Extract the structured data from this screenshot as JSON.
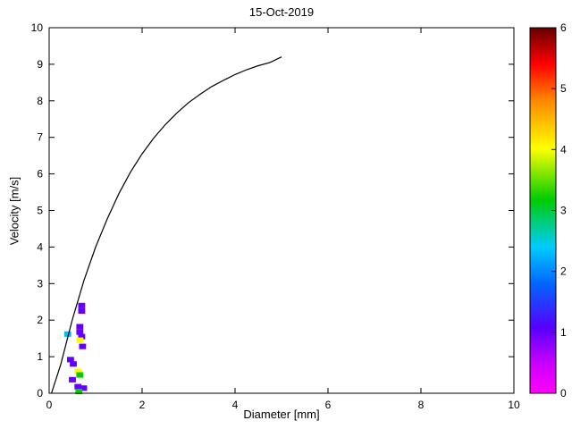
{
  "chart_data": {
    "type": "heatmap",
    "title": "15-Oct-2019",
    "xlabel": "Diameter [mm]",
    "ylabel": "Velocity [m/s]",
    "xlim": [
      0,
      10
    ],
    "ylim": [
      0,
      10
    ],
    "xticks": [
      0,
      2,
      4,
      6,
      8,
      10
    ],
    "yticks": [
      0,
      1,
      2,
      3,
      4,
      5,
      6,
      7,
      8,
      9,
      10
    ],
    "grid": false,
    "legend": "none",
    "background": "#ffffff",
    "axis_color": "#000000",
    "curve": {
      "name": "terminal-velocity-curve",
      "color": "#000000",
      "x": [
        0.05,
        0.25,
        0.5,
        0.75,
        1.0,
        1.25,
        1.5,
        1.75,
        2.0,
        2.25,
        2.5,
        2.75,
        3.0,
        3.25,
        3.5,
        3.75,
        4.0,
        4.25,
        4.5,
        4.75,
        5.0
      ],
      "y": [
        0,
        0.79,
        2.02,
        3.09,
        4.0,
        4.77,
        5.46,
        6.05,
        6.55,
        6.98,
        7.35,
        7.67,
        7.95,
        8.18,
        8.39,
        8.56,
        8.72,
        8.85,
        8.96,
        9.05,
        9.2
      ]
    },
    "cell_size": {
      "d": 0.15,
      "v": 0.15
    },
    "cells": [
      {
        "d": 0.7,
        "v": 2.4,
        "value": 1
      },
      {
        "d": 0.7,
        "v": 2.25,
        "value": 1
      },
      {
        "d": 0.66,
        "v": 1.82,
        "value": 1
      },
      {
        "d": 0.66,
        "v": 1.67,
        "value": 1
      },
      {
        "d": 0.4,
        "v": 1.62,
        "value": 2.3
      },
      {
        "d": 0.7,
        "v": 1.55,
        "value": 1
      },
      {
        "d": 0.66,
        "v": 1.45,
        "value": 4
      },
      {
        "d": 0.72,
        "v": 1.28,
        "value": 1
      },
      {
        "d": 0.46,
        "v": 0.92,
        "value": 1
      },
      {
        "d": 0.52,
        "v": 0.8,
        "value": 1
      },
      {
        "d": 0.62,
        "v": 0.6,
        "value": 4
      },
      {
        "d": 0.66,
        "v": 0.5,
        "value": 3.2
      },
      {
        "d": 0.5,
        "v": 0.37,
        "value": 1
      },
      {
        "d": 0.62,
        "v": 0.18,
        "value": 1
      },
      {
        "d": 0.74,
        "v": 0.14,
        "value": 1
      },
      {
        "d": 0.64,
        "v": 0.05,
        "value": 3.2
      }
    ],
    "colorbar": {
      "min": 0,
      "max": 6,
      "ticks": [
        0,
        1,
        2,
        3,
        4,
        5,
        6
      ],
      "stops": [
        {
          "t": 0.0,
          "c": "#ff00ff"
        },
        {
          "t": 0.08,
          "c": "#cc00ff"
        },
        {
          "t": 0.18,
          "c": "#5500ff"
        },
        {
          "t": 0.3,
          "c": "#0066ff"
        },
        {
          "t": 0.4,
          "c": "#00ccff"
        },
        {
          "t": 0.53,
          "c": "#00cc00"
        },
        {
          "t": 0.67,
          "c": "#ffff00"
        },
        {
          "t": 0.8,
          "c": "#ff8800"
        },
        {
          "t": 0.9,
          "c": "#ff0000"
        },
        {
          "t": 1.0,
          "c": "#660000"
        }
      ]
    }
  }
}
